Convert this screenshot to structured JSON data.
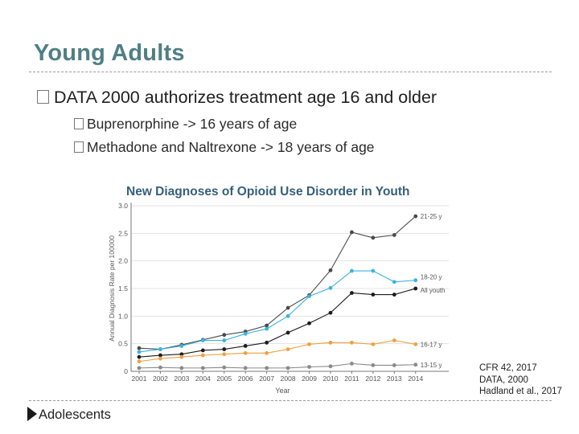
{
  "slide": {
    "title": "Young Adults",
    "bullet_main": "DATA 2000 authorizes treatment age 16 and older",
    "sub_bullets": [
      "Buprenorphine -> 16 years of age",
      "Methadone and Naltrexone -> 18 years of age"
    ],
    "citations": [
      "CFR 42, 2017",
      "DATA, 2000",
      "Hadland et al., 2017"
    ],
    "next_section": "Adolescents"
  },
  "chart_data": {
    "type": "line",
    "title": "New Diagnoses of Opioid Use Disorder in Youth",
    "xlabel": "Year",
    "ylabel": "Annual Diagnosis Rate per 100000",
    "x": [
      2001,
      2002,
      2003,
      2004,
      2005,
      2006,
      2007,
      2008,
      2009,
      2010,
      2011,
      2012,
      2013,
      2014
    ],
    "ylim": [
      0,
      3.0
    ],
    "yticks": [
      "0",
      "0.5",
      "1.0",
      "1.5",
      "2.0",
      "2.5",
      "3.0"
    ],
    "grid": true,
    "series": [
      {
        "name": "21-25 y",
        "color": "#4a4a4a",
        "values": [
          0.42,
          0.4,
          0.48,
          0.57,
          0.66,
          0.72,
          0.83,
          1.15,
          1.38,
          1.83,
          2.52,
          2.42,
          2.47,
          2.81
        ]
      },
      {
        "name": "18-20 y",
        "color": "#3bb3e0",
        "values": [
          0.35,
          0.4,
          0.46,
          0.56,
          0.56,
          0.68,
          0.77,
          1.0,
          1.36,
          1.51,
          1.82,
          1.82,
          1.62,
          1.65
        ]
      },
      {
        "name": "All youth",
        "color": "#1c1c1c",
        "values": [
          0.26,
          0.29,
          0.31,
          0.38,
          0.4,
          0.46,
          0.52,
          0.7,
          0.87,
          1.06,
          1.42,
          1.39,
          1.39,
          1.5
        ]
      },
      {
        "name": "16-17 y",
        "color": "#f0a040",
        "values": [
          0.18,
          0.23,
          0.26,
          0.29,
          0.31,
          0.33,
          0.33,
          0.4,
          0.49,
          0.52,
          0.52,
          0.49,
          0.56,
          0.49
        ]
      },
      {
        "name": "13-15 y",
        "color": "#8a8a8a",
        "values": [
          0.06,
          0.07,
          0.06,
          0.06,
          0.07,
          0.06,
          0.06,
          0.06,
          0.08,
          0.09,
          0.14,
          0.11,
          0.11,
          0.12
        ]
      }
    ]
  }
}
